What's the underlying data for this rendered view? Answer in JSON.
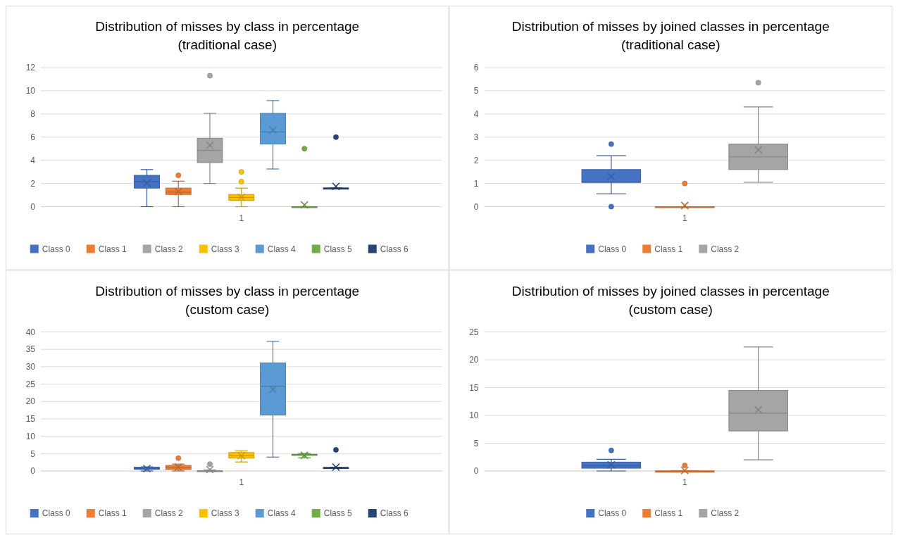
{
  "chart_data": [
    {
      "type": "box",
      "title": "Distribution of misses by class in percentage\n(traditional case)",
      "categories": [
        "1"
      ],
      "ylim": [
        0,
        12
      ],
      "yticks": [
        0,
        2,
        4,
        6,
        8,
        10,
        12
      ],
      "grid": "y",
      "legend": "bottom",
      "series": [
        {
          "name": "Class 0",
          "color": "#4472c4",
          "boxes": [
            {
              "low": 0,
              "q1": 1.6,
              "median": 2.15,
              "q3": 2.7,
              "high": 3.2,
              "mean": 2.05
            }
          ]
        },
        {
          "name": "Class 1",
          "color": "#ed7d31",
          "boxes": [
            {
              "low": 0,
              "q1": 1.05,
              "median": 1.25,
              "q3": 1.6,
              "high": 2.2,
              "mean": 1.3,
              "outliers": [
                2.7
              ]
            }
          ]
        },
        {
          "name": "Class 2",
          "color": "#a5a5a5",
          "boxes": [
            {
              "low": 2,
              "q1": 3.8,
              "median": 4.85,
              "q3": 5.9,
              "high": 8.05,
              "mean": 5.3,
              "outliers": [
                11.3
              ]
            }
          ]
        },
        {
          "name": "Class 3",
          "color": "#ffc000",
          "boxes": [
            {
              "low": 0,
              "q1": 0.55,
              "median": 0.8,
              "q3": 1.05,
              "high": 1.6,
              "mean": 0.8,
              "outliers": [
                2.15,
                3
              ]
            }
          ]
        },
        {
          "name": "Class 4",
          "color": "#5b9bd5",
          "boxes": [
            {
              "low": 3.25,
              "q1": 5.4,
              "median": 6.45,
              "q3": 8.05,
              "high": 9.15,
              "mean": 6.6
            }
          ]
        },
        {
          "name": "Class 5",
          "color": "#70ad47",
          "boxes": [
            {
              "low": 0,
              "q1": 0,
              "median": 0,
              "q3": 0,
              "high": 0,
              "mean": 0.15,
              "outliers": [
                5
              ]
            }
          ]
        },
        {
          "name": "Class 6",
          "color": "#264478",
          "boxes": [
            {
              "low": 1.6,
              "q1": 1.6,
              "median": 1.6,
              "q3": 1.6,
              "high": 1.6,
              "mean": 1.75,
              "outliers": [
                6
              ]
            }
          ]
        }
      ]
    },
    {
      "type": "box",
      "title": "Distribution of misses by joined classes in percentage\n(traditional case)",
      "categories": [
        "1"
      ],
      "ylim": [
        0,
        6
      ],
      "yticks": [
        0,
        1,
        2,
        3,
        4,
        5,
        6
      ],
      "grid": "y",
      "legend": "bottom",
      "series": [
        {
          "name": "Class 0",
          "color": "#4472c4",
          "boxes": [
            {
              "low": 0.55,
              "q1": 1.05,
              "median": 1.05,
              "q3": 1.6,
              "high": 2.2,
              "mean": 1.3,
              "outliers": [
                0,
                2.7
              ]
            }
          ]
        },
        {
          "name": "Class 1",
          "color": "#ed7d31",
          "boxes": [
            {
              "low": 0,
              "q1": 0,
              "median": 0,
              "q3": 0,
              "high": 0,
              "mean": 0.05,
              "outliers": [
                1
              ]
            }
          ]
        },
        {
          "name": "Class 2",
          "color": "#a5a5a5",
          "boxes": [
            {
              "low": 1.05,
              "q1": 1.6,
              "median": 2.15,
              "q3": 2.7,
              "high": 4.3,
              "mean": 2.45,
              "outliers": [
                5.35
              ]
            }
          ]
        }
      ]
    },
    {
      "type": "box",
      "title": "Distribution of misses by class in percentage\n(custom case)",
      "categories": [
        "1"
      ],
      "ylim": [
        0,
        40
      ],
      "yticks": [
        0,
        5,
        10,
        15,
        20,
        25,
        30,
        35,
        40
      ],
      "grid": "y",
      "legend": "bottom",
      "series": [
        {
          "name": "Class 0",
          "color": "#4472c4",
          "boxes": [
            {
              "low": 0,
              "q1": 0.5,
              "median": 0.8,
              "q3": 1.1,
              "high": 1.2,
              "mean": 0.7
            }
          ]
        },
        {
          "name": "Class 1",
          "color": "#ed7d31",
          "boxes": [
            {
              "low": 0,
              "q1": 0.5,
              "median": 1,
              "q3": 1.6,
              "high": 2,
              "mean": 1.1,
              "outliers": [
                3.7
              ]
            }
          ]
        },
        {
          "name": "Class 2",
          "color": "#a5a5a5",
          "boxes": [
            {
              "low": 0,
              "q1": 0,
              "median": 0,
              "q3": 0.1,
              "high": 0.3,
              "mean": 0.4,
              "outliers": [
                2
              ]
            }
          ]
        },
        {
          "name": "Class 3",
          "color": "#ffc000",
          "boxes": [
            {
              "low": 2.6,
              "q1": 3.7,
              "median": 4.5,
              "q3": 5.3,
              "high": 5.8,
              "mean": 4.4
            }
          ]
        },
        {
          "name": "Class 4",
          "color": "#5b9bd5",
          "boxes": [
            {
              "low": 4,
              "q1": 16.1,
              "median": 24.4,
              "q3": 31.1,
              "high": 37.3,
              "mean": 23.5
            }
          ]
        },
        {
          "name": "Class 5",
          "color": "#70ad47",
          "boxes": [
            {
              "low": 3.8,
              "q1": 4.6,
              "median": 4.7,
              "q3": 4.8,
              "high": 5,
              "mean": 4.5
            }
          ]
        },
        {
          "name": "Class 6",
          "color": "#264478",
          "boxes": [
            {
              "low": 1,
              "q1": 1,
              "median": 1,
              "q3": 1,
              "high": 1,
              "mean": 1.1,
              "outliers": [
                6.1
              ]
            }
          ]
        }
      ]
    },
    {
      "type": "box",
      "title": "Distribution of misses by joined classes in percentage\n(custom case)",
      "categories": [
        "1"
      ],
      "ylim": [
        0,
        25
      ],
      "yticks": [
        0,
        5,
        10,
        15,
        20,
        25
      ],
      "grid": "y",
      "legend": "bottom",
      "series": [
        {
          "name": "Class 0",
          "color": "#4472c4",
          "boxes": [
            {
              "low": 0,
              "q1": 0.5,
              "median": 1,
              "q3": 1.6,
              "high": 2.1,
              "mean": 1.1,
              "outliers": [
                3.7
              ]
            }
          ]
        },
        {
          "name": "Class 1",
          "color": "#ed7d31",
          "boxes": [
            {
              "low": 0,
              "q1": 0,
              "median": 0,
              "q3": 0,
              "high": 0,
              "mean": 0.1,
              "outliers": [
                1
              ]
            }
          ]
        },
        {
          "name": "Class 2",
          "color": "#a5a5a5",
          "boxes": [
            {
              "low": 2,
              "q1": 7.2,
              "median": 10.4,
              "q3": 14.5,
              "high": 22.3,
              "mean": 11
            }
          ]
        }
      ]
    }
  ]
}
